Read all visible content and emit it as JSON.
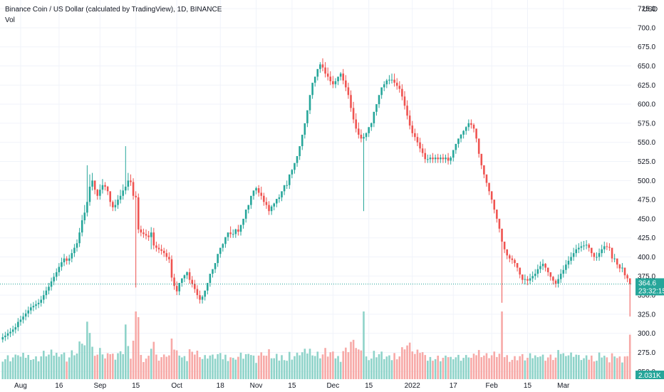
{
  "header": {
    "title": "Binance Coin / US Dollar (calculated by TradingView), 1D, BINANCE",
    "volume_label": "Vol",
    "currency": "USD"
  },
  "colors": {
    "up": "#26a69a",
    "down": "#ef5350",
    "up_volume": "#8ed3c9",
    "down_volume": "#f7a9a7",
    "price_badge": "#26a69a",
    "grid": "#f0f3fa"
  },
  "price_badge": {
    "price": "364.6",
    "countdown": "23:32:15"
  },
  "volume_badge": "2.031K",
  "chart_data": {
    "type": "candlestick",
    "title": "Binance Coin / US Dollar (calculated by TradingView), 1D, BINANCE",
    "y_range": [
      240,
      727
    ],
    "y_ticks": [
      250,
      275,
      300,
      325,
      350,
      375,
      400,
      425,
      450,
      475,
      500,
      525,
      550,
      575,
      600,
      625,
      650,
      675,
      700,
      725
    ],
    "y_tick_labels": [
      "250.0",
      "275.0",
      "300.0",
      "325.0",
      "350.0",
      "375.0",
      "400.0",
      "425.0",
      "450.0",
      "475.0",
      "500.0",
      "525.0",
      "550.0",
      "575.0",
      "600.0",
      "625.0",
      "650.0",
      "675.0",
      "700.0",
      "725.0"
    ],
    "x_ticks": [
      {
        "label": "Aug",
        "index": 7
      },
      {
        "label": "16",
        "index": 22
      },
      {
        "label": "Sep",
        "index": 38
      },
      {
        "label": "15",
        "index": 52
      },
      {
        "label": "Oct",
        "index": 68
      },
      {
        "label": "18",
        "index": 85
      },
      {
        "label": "Nov",
        "index": 99
      },
      {
        "label": "15",
        "index": 113
      },
      {
        "label": "Dec",
        "index": 129
      },
      {
        "label": "15",
        "index": 143
      },
      {
        "label": "2022",
        "index": 160
      },
      {
        "label": "17",
        "index": 176
      },
      {
        "label": "Feb",
        "index": 191
      },
      {
        "label": "15",
        "index": 205
      },
      {
        "label": "Mar",
        "index": 219
      }
    ],
    "last_price": 364.6,
    "closes": [
      295,
      297,
      300,
      302,
      305,
      308,
      315,
      318,
      322,
      326,
      330,
      334,
      336,
      338,
      340,
      344,
      350,
      356,
      361,
      368,
      374,
      380,
      387,
      393,
      398,
      395,
      398,
      405,
      412,
      418,
      432,
      448,
      458,
      472,
      492,
      500,
      488,
      480,
      488,
      494,
      492,
      486,
      472,
      465,
      468,
      475,
      480,
      487,
      492,
      500,
      498,
      480,
      478,
      436,
      432,
      430,
      428,
      426,
      432,
      415,
      412,
      410,
      408,
      405,
      400,
      397,
      373,
      362,
      355,
      366,
      372,
      376,
      380,
      370,
      365,
      358,
      350,
      344,
      348,
      356,
      366,
      378,
      384,
      392,
      404,
      412,
      417,
      426,
      432,
      430,
      430,
      436,
      433,
      442,
      450,
      462,
      468,
      480,
      487,
      490,
      484,
      480,
      472,
      468,
      460,
      466,
      470,
      476,
      478,
      486,
      494,
      494,
      508,
      514,
      523,
      532,
      545,
      560,
      575,
      592,
      612,
      628,
      636,
      646,
      652,
      648,
      640,
      636,
      630,
      626,
      630,
      636,
      640,
      631,
      622,
      612,
      595,
      580,
      568,
      560,
      555,
      557,
      562,
      570,
      575,
      590,
      600,
      612,
      622,
      626,
      631,
      632,
      632,
      628,
      624,
      620,
      610,
      598,
      585,
      572,
      562,
      557,
      550,
      542,
      536,
      528,
      528,
      530,
      528,
      530,
      528,
      530,
      528,
      530,
      526,
      530,
      540,
      548,
      555,
      560,
      565,
      570,
      575,
      573,
      568,
      555,
      535,
      520,
      508,
      497,
      486,
      475,
      462,
      450,
      437,
      420,
      410,
      402,
      398,
      396,
      392,
      386,
      377,
      370,
      371,
      369,
      372,
      375,
      378,
      384,
      388,
      391,
      386,
      380,
      374,
      369,
      365,
      371,
      378,
      383,
      390,
      395,
      400,
      405,
      410,
      412,
      414,
      415,
      416,
      412,
      405,
      400,
      400,
      405,
      410,
      414,
      413,
      412,
      398,
      398,
      390,
      385,
      386,
      376,
      372,
      364.6
    ],
    "opens": [
      292,
      295,
      297,
      300,
      302,
      305,
      308,
      315,
      318,
      322,
      326,
      330,
      334,
      336,
      338,
      340,
      344,
      350,
      356,
      361,
      368,
      374,
      380,
      387,
      393,
      398,
      395,
      398,
      405,
      412,
      418,
      432,
      448,
      458,
      472,
      492,
      500,
      488,
      480,
      488,
      494,
      492,
      486,
      472,
      465,
      468,
      475,
      480,
      487,
      492,
      500,
      498,
      480,
      478,
      436,
      432,
      430,
      428,
      426,
      432,
      415,
      412,
      410,
      408,
      405,
      400,
      397,
      373,
      362,
      355,
      366,
      372,
      376,
      380,
      370,
      365,
      358,
      350,
      344,
      348,
      356,
      366,
      378,
      384,
      392,
      404,
      412,
      417,
      426,
      432,
      430,
      430,
      436,
      433,
      442,
      450,
      462,
      468,
      480,
      487,
      490,
      484,
      480,
      472,
      468,
      460,
      466,
      470,
      476,
      478,
      486,
      494,
      494,
      508,
      514,
      523,
      532,
      545,
      560,
      575,
      592,
      612,
      628,
      636,
      646,
      652,
      648,
      640,
      636,
      630,
      626,
      630,
      636,
      640,
      631,
      622,
      612,
      595,
      580,
      568,
      560,
      555,
      557,
      562,
      570,
      575,
      590,
      600,
      612,
      622,
      626,
      631,
      632,
      632,
      628,
      624,
      620,
      610,
      598,
      585,
      572,
      562,
      557,
      550,
      542,
      536,
      528,
      528,
      530,
      528,
      530,
      528,
      530,
      528,
      530,
      526,
      530,
      540,
      548,
      555,
      560,
      565,
      570,
      575,
      573,
      568,
      555,
      535,
      520,
      508,
      497,
      486,
      475,
      462,
      450,
      437,
      420,
      410,
      402,
      398,
      396,
      392,
      386,
      377,
      370,
      371,
      369,
      372,
      375,
      378,
      384,
      388,
      391,
      386,
      380,
      374,
      369,
      365,
      371,
      378,
      383,
      390,
      395,
      400,
      405,
      410,
      412,
      414,
      415,
      416,
      412,
      405,
      400,
      400,
      405,
      410,
      414,
      413,
      412,
      398,
      398,
      390,
      385,
      386,
      376,
      372
    ],
    "highs": [
      300,
      302,
      305,
      307,
      310,
      313,
      320,
      323,
      327,
      331,
      335,
      339,
      341,
      343,
      345,
      349,
      356,
      361,
      366,
      373,
      379,
      385,
      392,
      399,
      404,
      401,
      403,
      410,
      417,
      423,
      438,
      455,
      468,
      520,
      508,
      510,
      496,
      489,
      495,
      502,
      498,
      493,
      479,
      474,
      475,
      481,
      488,
      495,
      545,
      510,
      508,
      503,
      486,
      483,
      441,
      437,
      436,
      434,
      439,
      438,
      420,
      417,
      416,
      412,
      410,
      406,
      402,
      378,
      368,
      365,
      372,
      377,
      381,
      385,
      375,
      370,
      363,
      356,
      350,
      353,
      362,
      371,
      384,
      390,
      398,
      410,
      418,
      423,
      432,
      440,
      436,
      437,
      442,
      440,
      448,
      456,
      468,
      476,
      486,
      492,
      494,
      492,
      484,
      478,
      473,
      468,
      471,
      476,
      482,
      484,
      492,
      500,
      500,
      515,
      520,
      530,
      540,
      552,
      568,
      582,
      600,
      620,
      636,
      645,
      655,
      660,
      655,
      648,
      643,
      637,
      634,
      636,
      642,
      646,
      638,
      628,
      618,
      603,
      588,
      576,
      567,
      562,
      563,
      568,
      576,
      582,
      598,
      607,
      620,
      630,
      633,
      638,
      640,
      640,
      634,
      630,
      626,
      617,
      605,
      592,
      578,
      568,
      562,
      556,
      548,
      542,
      534,
      534,
      536,
      534,
      535,
      534,
      535,
      534,
      536,
      532,
      536,
      546,
      554,
      561,
      566,
      571,
      580,
      580,
      575,
      562,
      541,
      526,
      514,
      503,
      492,
      481,
      468,
      456,
      443,
      428,
      416,
      408,
      404,
      402,
      398,
      392,
      383,
      376,
      377,
      375,
      378,
      381,
      384,
      390,
      394,
      397,
      392,
      386,
      380,
      375,
      371,
      377,
      384,
      389,
      396,
      401,
      406,
      412,
      416,
      418,
      420,
      421,
      422,
      418,
      411,
      406,
      406,
      411,
      416,
      420,
      419,
      418,
      404,
      404,
      396,
      391,
      392,
      382,
      378,
      372
    ],
    "lows": [
      288,
      290,
      292,
      295,
      297,
      300,
      303,
      310,
      313,
      317,
      321,
      325,
      329,
      331,
      333,
      335,
      339,
      345,
      351,
      356,
      363,
      369,
      375,
      382,
      388,
      390,
      390,
      393,
      400,
      407,
      413,
      427,
      443,
      453,
      467,
      487,
      482,
      475,
      475,
      483,
      487,
      481,
      466,
      460,
      460,
      463,
      470,
      475,
      482,
      487,
      493,
      475,
      360,
      431,
      427,
      425,
      423,
      421,
      410,
      410,
      407,
      405,
      403,
      400,
      395,
      392,
      368,
      357,
      350,
      350,
      361,
      367,
      371,
      365,
      360,
      353,
      345,
      339,
      339,
      343,
      351,
      361,
      373,
      379,
      387,
      399,
      407,
      412,
      421,
      425,
      425,
      425,
      428,
      428,
      437,
      445,
      457,
      463,
      475,
      482,
      479,
      475,
      467,
      463,
      455,
      455,
      461,
      465,
      471,
      473,
      481,
      489,
      489,
      503,
      509,
      518,
      527,
      540,
      555,
      570,
      587,
      607,
      623,
      631,
      641,
      643,
      635,
      631,
      625,
      621,
      621,
      625,
      631,
      626,
      617,
      607,
      590,
      575,
      563,
      555,
      550,
      460,
      552,
      557,
      565,
      570,
      585,
      595,
      607,
      617,
      621,
      626,
      627,
      623,
      619,
      615,
      605,
      593,
      580,
      567,
      557,
      552,
      545,
      537,
      531,
      523,
      523,
      523,
      523,
      523,
      523,
      523,
      523,
      523,
      521,
      521,
      525,
      535,
      543,
      550,
      555,
      560,
      565,
      568,
      563,
      550,
      530,
      515,
      503,
      492,
      481,
      470,
      457,
      445,
      432,
      340,
      405,
      397,
      393,
      391,
      387,
      381,
      372,
      365,
      364,
      363,
      364,
      367,
      370,
      373,
      379,
      383,
      381,
      375,
      369,
      364,
      360,
      360,
      366,
      373,
      378,
      385,
      390,
      395,
      400,
      405,
      407,
      409,
      410,
      407,
      400,
      395,
      395,
      395,
      400,
      405,
      409,
      408,
      393,
      393,
      385,
      380,
      380,
      371,
      367,
      322
    ]
  }
}
